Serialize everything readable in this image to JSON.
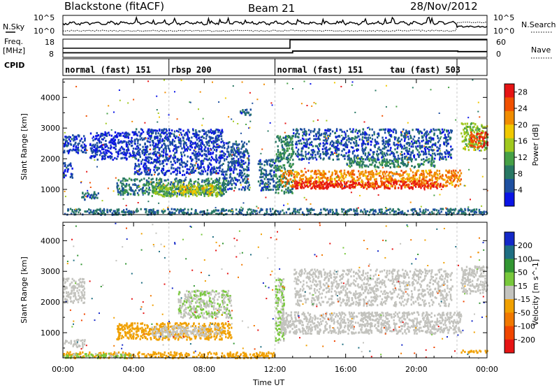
{
  "header": {
    "site": "Blackstone (fitACF)",
    "beam": "Beam 21",
    "date": "28/Nov/2012"
  },
  "strip_labels": {
    "n_sky": "N.Sky",
    "n_search": "N.Search",
    "freq_line1": "Freq.",
    "freq_line2": "[MHz]",
    "nave": "Nave",
    "cpid": "CPID",
    "noise_ticks": [
      "10^5",
      "10^0"
    ],
    "freq_ticks": [
      "18",
      "8"
    ],
    "nave_ticks": [
      "60",
      "0"
    ]
  },
  "cpid_modes": [
    {
      "label": "normal (fast) 151",
      "start_hour": 0
    },
    {
      "label": "rbsp 200",
      "start_hour": 6
    },
    {
      "label": "normal (fast) 151",
      "start_hour": 12
    },
    {
      "label": "tau (fast) 503",
      "start_hour": 22.3
    }
  ],
  "frequency_mhz": [
    {
      "hour": 0,
      "value": 10.3
    },
    {
      "hour": 6,
      "value": 10.3
    },
    {
      "hour": 13,
      "value": 11.3
    },
    {
      "hour": 22.3,
      "value": 11.3
    },
    {
      "hour": 22.35,
      "value": 11.0
    },
    {
      "hour": 24,
      "value": 11.0
    }
  ],
  "nave": [
    {
      "hour": 0,
      "value": 30
    },
    {
      "hour": 12.8,
      "value": 30
    },
    {
      "hour": 12.85,
      "value": 60
    },
    {
      "hour": 24,
      "value": 60
    }
  ],
  "chart_data": [
    {
      "type": "heatmap",
      "panel": "power",
      "xlabel": "",
      "ylabel": "Slant Range [km]",
      "xlim": [
        0,
        24
      ],
      "ylim": [
        180,
        4600
      ],
      "y_ticks": [
        "1000",
        "2000",
        "3000",
        "4000"
      ],
      "colorbar": {
        "label": "Power [dB]",
        "ticks": [
          "4",
          "8",
          "12",
          "16",
          "20",
          "24",
          "28"
        ],
        "range": [
          0,
          30
        ],
        "colors": [
          "#0a14e6",
          "#1e50a0",
          "#287864",
          "#46a046",
          "#a0c81e",
          "#f0c800",
          "#f08c00",
          "#f05000",
          "#e61414"
        ]
      },
      "regions": [
        {
          "hour_start": 0.0,
          "hour_end": 1.3,
          "range_start_km": 2200,
          "range_end_km": 2800,
          "value": 4
        },
        {
          "hour_start": 0.0,
          "hour_end": 0.5,
          "range_start_km": 1400,
          "range_end_km": 1900,
          "value": 4
        },
        {
          "hour_start": 1.0,
          "hour_end": 2.0,
          "range_start_km": 700,
          "range_end_km": 950,
          "value": 6
        },
        {
          "hour_start": 1.5,
          "hour_end": 4.0,
          "range_start_km": 2000,
          "range_end_km": 2900,
          "value": 3
        },
        {
          "hour_start": 3.0,
          "hour_end": 9.2,
          "range_start_km": 850,
          "range_end_km": 1400,
          "value": 8
        },
        {
          "hour_start": 5.0,
          "hour_end": 9.0,
          "range_start_km": 800,
          "range_end_km": 1200,
          "value": 14
        },
        {
          "hour_start": 6.5,
          "hour_end": 8.5,
          "range_start_km": 900,
          "range_end_km": 1150,
          "value": 18
        },
        {
          "hour_start": 4.0,
          "hour_end": 9.0,
          "range_start_km": 1500,
          "range_end_km": 3000,
          "value": 4
        },
        {
          "hour_start": 9.0,
          "hour_end": 10.5,
          "range_start_km": 1000,
          "range_end_km": 2600,
          "value": 5
        },
        {
          "hour_start": 10.0,
          "hour_end": 10.6,
          "range_start_km": 3450,
          "range_end_km": 3650,
          "value": 6
        },
        {
          "hour_start": 11.0,
          "hour_end": 12.0,
          "range_start_km": 1000,
          "range_end_km": 2000,
          "value": 6
        },
        {
          "hour_start": 12.0,
          "hour_end": 13.0,
          "range_start_km": 900,
          "range_end_km": 2800,
          "value": 9
        },
        {
          "hour_start": 12.3,
          "hour_end": 22.5,
          "range_start_km": 1100,
          "range_end_km": 1650,
          "value": 22
        },
        {
          "hour_start": 13.0,
          "hour_end": 21.5,
          "range_start_km": 1050,
          "range_end_km": 1300,
          "value": 28
        },
        {
          "hour_start": 13.0,
          "hour_end": 22.0,
          "range_start_km": 2000,
          "range_end_km": 3000,
          "value": 5
        },
        {
          "hour_start": 16.0,
          "hour_end": 21.0,
          "range_start_km": 1750,
          "range_end_km": 2050,
          "value": 9
        },
        {
          "hour_start": 22.5,
          "hour_end": 24.0,
          "range_start_km": 2300,
          "range_end_km": 3200,
          "value": 14
        },
        {
          "hour_start": 23.0,
          "hour_end": 24.0,
          "range_start_km": 2400,
          "range_end_km": 2900,
          "value": 26
        },
        {
          "hour_start": 0.0,
          "hour_end": 24.0,
          "range_start_km": 200,
          "range_end_km": 400,
          "value": 7
        }
      ]
    },
    {
      "type": "heatmap",
      "panel": "velocity",
      "xlabel": "Time UT",
      "ylabel": "Slant Range [km]",
      "xlim": [
        0,
        24
      ],
      "ylim": [
        180,
        4600
      ],
      "x_ticks": [
        "00:00",
        "04:00",
        "08:00",
        "12:00",
        "16:00",
        "20:00",
        "00:00"
      ],
      "y_ticks": [
        "1000",
        "2000",
        "3000",
        "4000"
      ],
      "colorbar": {
        "label": "Velocity [m s^-1]",
        "ticks": [
          "200",
          "100",
          "50",
          "15",
          "-15",
          "-50",
          "-100",
          "-200"
        ],
        "range": [
          -250,
          250
        ],
        "colors": [
          "#1428c8",
          "#1e6e82",
          "#329632",
          "#78c83c",
          "#c3c3be",
          "#f0a000",
          "#f07800",
          "#f04600",
          "#e61414"
        ]
      },
      "regions": [
        {
          "hour_start": 0.0,
          "hour_end": 1.2,
          "range_start_km": 550,
          "range_end_km": 800,
          "value": 0
        },
        {
          "hour_start": 0.0,
          "hour_end": 1.2,
          "range_start_km": 2000,
          "range_end_km": 2800,
          "value": 0
        },
        {
          "hour_start": 3.0,
          "hour_end": 9.5,
          "range_start_km": 800,
          "range_end_km": 1350,
          "value": -60
        },
        {
          "hour_start": 5.0,
          "hour_end": 9.0,
          "range_start_km": 900,
          "range_end_km": 1250,
          "value": 0
        },
        {
          "hour_start": 6.5,
          "hour_end": 9.5,
          "range_start_km": 1500,
          "range_end_km": 2400,
          "value": 25
        },
        {
          "hour_start": 12.0,
          "hour_end": 12.5,
          "range_start_km": 700,
          "range_end_km": 2800,
          "value": 30
        },
        {
          "hour_start": 12.3,
          "hour_end": 22.5,
          "range_start_km": 1000,
          "range_end_km": 1700,
          "value": 0
        },
        {
          "hour_start": 13.0,
          "hour_end": 22.0,
          "range_start_km": 1900,
          "range_end_km": 3100,
          "value": 0
        },
        {
          "hour_start": 22.5,
          "hour_end": 24.0,
          "range_start_km": 2300,
          "range_end_km": 3200,
          "value": 0
        },
        {
          "hour_start": 0.0,
          "hour_end": 12.0,
          "range_start_km": 200,
          "range_end_km": 400,
          "value": -40
        },
        {
          "hour_start": 0.0,
          "hour_end": 4.0,
          "range_start_km": 200,
          "range_end_km": 350,
          "value": 30
        },
        {
          "hour_start": 22.5,
          "hour_end": 24.0,
          "range_start_km": 380,
          "range_end_km": 460,
          "value": -60
        }
      ]
    }
  ]
}
